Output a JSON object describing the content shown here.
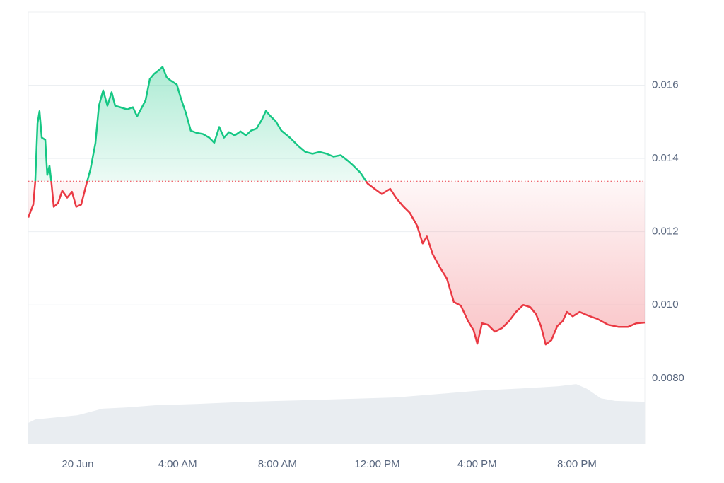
{
  "chart_data": {
    "type": "baseline-line",
    "x": [
      -1.98,
      -1.78,
      -1.7,
      -1.61,
      -1.53,
      -1.44,
      -1.3,
      -1.22,
      -1.13,
      -1.05,
      -0.96,
      -0.79,
      -0.62,
      -0.42,
      -0.23,
      -0.06,
      0.14,
      0.34,
      0.51,
      0.71,
      0.85,
      1.02,
      1.19,
      1.36,
      1.5,
      1.7,
      1.98,
      2.21,
      2.38,
      2.49,
      2.72,
      2.89,
      3.06,
      3.23,
      3.4,
      3.57,
      3.74,
      3.97,
      4.14,
      4.33,
      4.53,
      4.76,
      5.01,
      5.27,
      5.47,
      5.67,
      5.86,
      6.06,
      6.29,
      6.52,
      6.74,
      6.94,
      7.17,
      7.37,
      7.54,
      7.73,
      7.93,
      8.16,
      8.5,
      8.84,
      9.12,
      9.41,
      9.69,
      9.97,
      10.25,
      10.54,
      10.82,
      11.05,
      11.33,
      11.61,
      11.9,
      12.18,
      12.52,
      12.75,
      13.03,
      13.31,
      13.6,
      13.82,
      13.99,
      14.22,
      14.5,
      14.79,
      15.07,
      15.35,
      15.64,
      15.86,
      16.01,
      16.2,
      16.43,
      16.71,
      17.0,
      17.28,
      17.56,
      17.85,
      18.13,
      18.36,
      18.56,
      18.75,
      18.98,
      19.21,
      19.43,
      19.6,
      19.83,
      20.11,
      20.45,
      20.82,
      21.25,
      21.67,
      22.04,
      22.38,
      22.72
    ],
    "series": [
      {
        "values": [
          0.01239,
          0.01274,
          0.01338,
          0.01496,
          0.01529,
          0.01457,
          0.01451,
          0.01355,
          0.0138,
          0.01332,
          0.01268,
          0.01278,
          0.01312,
          0.01293,
          0.01309,
          0.01268,
          0.01274,
          0.01328,
          0.0137,
          0.01442,
          0.01544,
          0.01586,
          0.01544,
          0.01581,
          0.01544,
          0.0154,
          0.01534,
          0.0154,
          0.01515,
          0.01529,
          0.01559,
          0.01617,
          0.01631,
          0.0164,
          0.0165,
          0.01621,
          0.01612,
          0.01602,
          0.01563,
          0.01525,
          0.01476,
          0.0147,
          0.01467,
          0.01457,
          0.01443,
          0.01486,
          0.01457,
          0.01472,
          0.01463,
          0.01474,
          0.01463,
          0.01476,
          0.01482,
          0.01505,
          0.0153,
          0.01515,
          0.01502,
          0.01476,
          0.01457,
          0.01434,
          0.01418,
          0.01413,
          0.01418,
          0.01413,
          0.01405,
          0.01409,
          0.01394,
          0.0138,
          0.01361,
          0.01332,
          0.01317,
          0.01303,
          0.01317,
          0.01293,
          0.0127,
          0.01251,
          0.01216,
          0.01168,
          0.01187,
          0.01139,
          0.01104,
          0.01072,
          0.01008,
          0.00998,
          0.00956,
          0.00931,
          0.00894,
          0.0095,
          0.00946,
          0.00927,
          0.00937,
          0.00956,
          0.00981,
          0.01,
          0.00994,
          0.00975,
          0.00942,
          0.00892,
          0.00904,
          0.00942,
          0.00956,
          0.00981,
          0.00969,
          0.00981,
          0.00971,
          0.00962,
          0.00946,
          0.0094,
          0.0094,
          0.0095,
          0.00952
        ]
      },
      {
        "axis": "y2",
        "color": "#e9edf1",
        "x": [
          -1.98,
          -1.7,
          -0.85,
          0,
          0.99,
          1.98,
          3.12,
          4.82,
          6.8,
          8.78,
          11.05,
          12.75,
          14.45,
          16.15,
          17.85,
          19.27,
          19.97,
          20.4,
          20.96,
          21.53,
          22.72
        ],
        "values": [
          4.9,
          5.7,
          6.2,
          6.7,
          8.2,
          8.5,
          9.0,
          9.3,
          9.8,
          10.1,
          10.5,
          10.8,
          11.6,
          12.4,
          12.9,
          13.4,
          13.9,
          12.8,
          10.6,
          10.0,
          9.8
        ]
      }
    ],
    "baseline": 0.01338,
    "up_color": "#16c784",
    "down_color": "#ea3943",
    "xlim": [
      -1.98,
      22.72
    ],
    "xticks": [
      {
        "value": 0,
        "label": "20 Jun"
      },
      {
        "value": 4,
        "label": "4:00 AM"
      },
      {
        "value": 8,
        "label": "8:00 AM"
      },
      {
        "value": 12,
        "label": "12:00 PM"
      },
      {
        "value": 16,
        "label": "4:00 PM"
      },
      {
        "value": 20,
        "label": "8:00 PM"
      }
    ],
    "ylim": [
      0.0062,
      0.018
    ],
    "yticks": [
      {
        "value": 0.008,
        "label": "0.0080"
      },
      {
        "value": 0.01,
        "label": "0.010"
      },
      0.012,
      0.014,
      0.016
    ],
    "y2lim": [
      0,
      100
    ],
    "grid": true
  }
}
